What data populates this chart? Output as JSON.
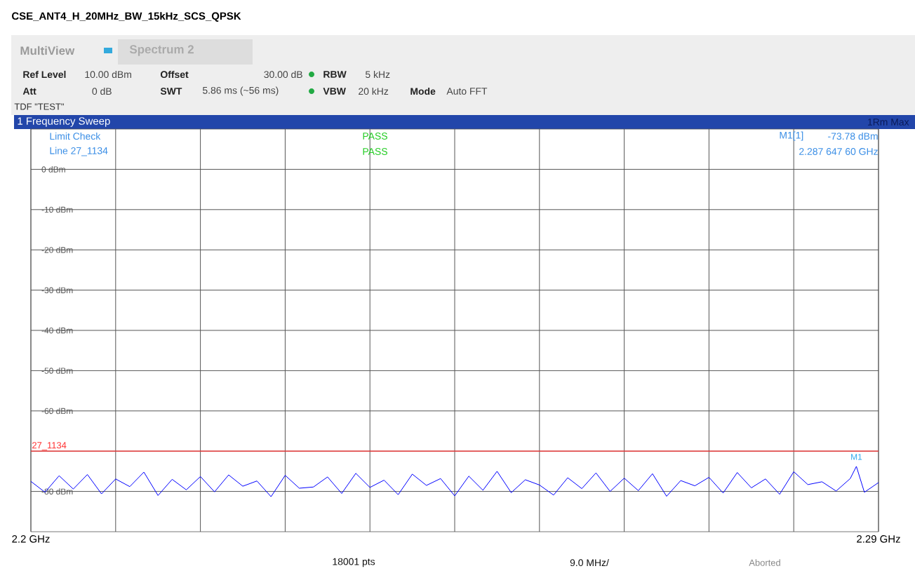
{
  "chart_data": {
    "type": "line",
    "title": "CSE_ANT4_H_20MHz_BW_15kHz_SCS_QPSK",
    "x": [
      2.2,
      2.2015,
      2.203,
      2.2045,
      2.206,
      2.2075,
      2.209,
      2.2105,
      2.212,
      2.2135,
      2.215,
      2.2165,
      2.218,
      2.2195,
      2.221,
      2.2225,
      2.224,
      2.2255,
      2.227,
      2.2285,
      2.23,
      2.2315,
      2.233,
      2.2345,
      2.236,
      2.2375,
      2.239,
      2.2405,
      2.242,
      2.2435,
      2.245,
      2.2465,
      2.248,
      2.2495,
      2.251,
      2.2525,
      2.254,
      2.2555,
      2.257,
      2.2585,
      2.26,
      2.2615,
      2.263,
      2.2645,
      2.266,
      2.2675,
      2.269,
      2.2705,
      2.272,
      2.2735,
      2.275,
      2.2765,
      2.278,
      2.2795,
      2.281,
      2.2825,
      2.284,
      2.2855,
      2.287,
      2.28765,
      2.2885,
      2.29
    ],
    "series": [
      {
        "color": "#0000ff",
        "values": [
          -77.5,
          -80.2,
          -76.1,
          -79.4,
          -75.8,
          -80.6,
          -76.9,
          -78.8,
          -75.2,
          -81.0,
          -77.0,
          -79.6,
          -76.3,
          -80.1,
          -75.9,
          -78.7,
          -77.4,
          -81.3,
          -76.0,
          -79.2,
          -78.9,
          -76.4,
          -80.5,
          -75.5,
          -79.0,
          -77.2,
          -80.8,
          -75.7,
          -78.5,
          -76.8,
          -81.1,
          -76.2,
          -79.7,
          -75.0,
          -80.3,
          -77.1,
          -78.4,
          -80.9,
          -76.6,
          -79.3,
          -75.4,
          -80.0,
          -76.7,
          -79.8,
          -75.6,
          -81.2,
          -77.3,
          -78.6,
          -76.5,
          -80.4,
          -75.3,
          -79.1,
          -76.9,
          -80.7,
          -75.1,
          -78.3,
          -77.6,
          -79.9,
          -76.8,
          -73.78,
          -80.2,
          -77.8
        ]
      }
    ],
    "xlim": [
      2.2,
      2.29
    ],
    "xticks": [
      {
        "value": 2.2,
        "label": "2.2 GHz"
      },
      {
        "value": 2.209,
        "label": null
      },
      {
        "value": 2.218,
        "label": null
      },
      {
        "value": 2.227,
        "label": null
      },
      {
        "value": 2.236,
        "label": null
      },
      {
        "value": 2.245,
        "label": null
      },
      {
        "value": 2.254,
        "label": null
      },
      {
        "value": 2.263,
        "label": null
      },
      {
        "value": 2.272,
        "label": null
      },
      {
        "value": 2.281,
        "label": null
      },
      {
        "value": 2.29,
        "label": "2.29 GHz"
      }
    ],
    "ylim": [
      -90,
      10
    ],
    "yticks": [
      {
        "value": 0,
        "label": "0 dBm"
      },
      {
        "value": -10,
        "label": "-10 dBm"
      },
      {
        "value": -20,
        "label": "-20 dBm"
      },
      {
        "value": -30,
        "label": "-30 dBm"
      },
      {
        "value": -40,
        "label": "-40 dBm"
      },
      {
        "value": -50,
        "label": "-50 dBm"
      },
      {
        "value": -60,
        "label": "-60 dBm"
      },
      {
        "value": -70,
        "label": null
      },
      {
        "value": -80,
        "label": "-80 dBm"
      }
    ],
    "grid": true,
    "ref_lines": [
      {
        "axis": "y",
        "value": -70,
        "color": "#ff3333"
      }
    ],
    "annotations": [
      "MultiView",
      "Spectrum 2",
      "Ref Level",
      "10.00 dBm",
      "Offset",
      "30.00 dB",
      "RBW",
      "5 kHz",
      "Att",
      "0 dB",
      "SWT",
      "5.86 ms (~56 ms)",
      "VBW",
      "20 kHz",
      "Mode",
      "Auto FFT",
      "TDF \"TEST\"",
      "1 Frequency Sweep",
      "1Rm Max",
      "Limit Check",
      "PASS",
      "Line 27_1134",
      "PASS",
      "M1[1]",
      "-73.78 dBm",
      "2.287 647 60 GHz",
      "18001 pts",
      "9.0 MHz/",
      "Aborted",
      {
        "text": "M1",
        "x": 2.28765,
        "y": -73.78
      },
      {
        "text": "27_1134",
        "x": 2.2,
        "y": -70
      }
    ]
  }
}
